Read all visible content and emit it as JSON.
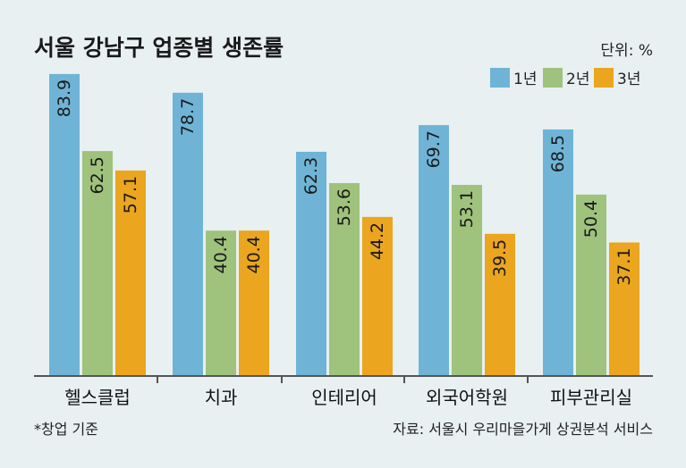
{
  "title": "서울 강남구 업종별 생존률",
  "unit_label": "단위: %",
  "footnote": "*창업 기준",
  "source": "자료: 서울시 우리마을가게 상권분석 서비스",
  "colors": {
    "background": "#e8f0f2",
    "series1": "#6fb4d6",
    "series2": "#9fc27c",
    "series3": "#eba51f",
    "baseline": "#555555"
  },
  "chart_data": {
    "type": "bar",
    "title": "서울 강남구 업종별 생존률",
    "categories": [
      "헬스클럽",
      "치과",
      "인테리어",
      "외국어학원",
      "피부관리실"
    ],
    "series": [
      {
        "name": "1년",
        "values": [
          83.9,
          78.7,
          62.3,
          69.7,
          68.5
        ]
      },
      {
        "name": "2년",
        "values": [
          62.5,
          40.4,
          53.6,
          53.1,
          50.4
        ]
      },
      {
        "name": "3년",
        "values": [
          57.1,
          40.4,
          44.2,
          39.5,
          37.1
        ]
      }
    ],
    "ylim": [
      0,
      100
    ],
    "grid": false,
    "legend_position": "top-right",
    "data_labels": "inside-top-rotated"
  }
}
